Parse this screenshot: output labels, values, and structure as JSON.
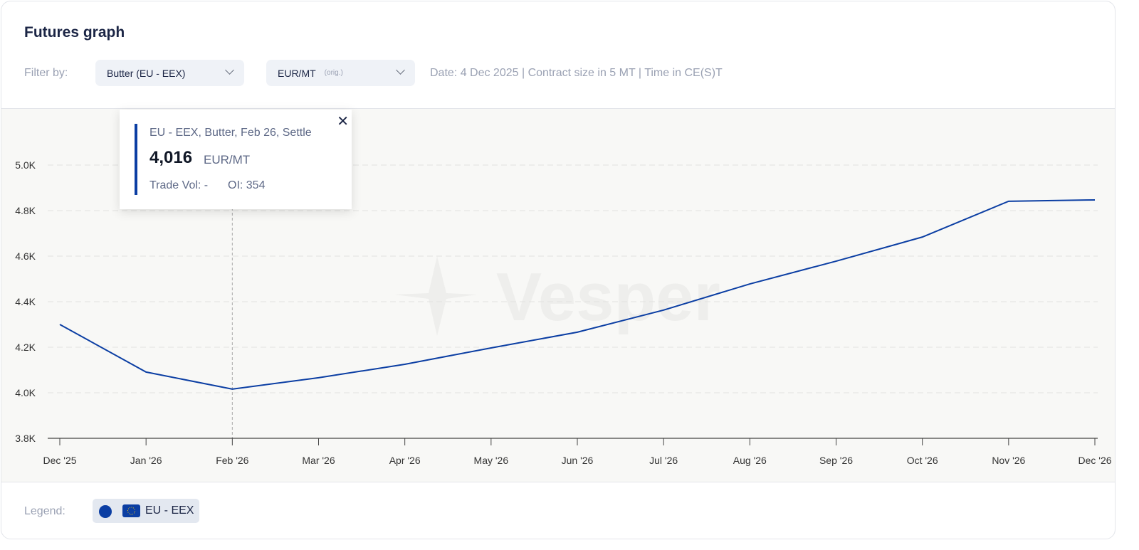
{
  "header": {
    "title": "Futures graph",
    "filter_label": "Filter by:",
    "product_select": "Butter (EU - EEX)",
    "unit_select": "EUR/MT",
    "unit_note": "(orig.)",
    "info": "Date: 4 Dec 2025 | Contract size in 5 MT | Time in CE(S)T"
  },
  "tooltip": {
    "title": "EU - EEX, Butter, Feb 26, Settle",
    "value": "4,016",
    "unit": "EUR/MT",
    "trade_vol": "Trade Vol: -",
    "oi": "OI: 354",
    "close_icon": "close-icon"
  },
  "watermark": "Vesper",
  "legend": {
    "label": "Legend:",
    "series": "EU - EEX",
    "color": "#0b3ea3",
    "flag_icon": "eu-flag-icon"
  },
  "chart_data": {
    "type": "line",
    "categories": [
      "Dec '25",
      "Jan '26",
      "Feb '26",
      "Mar '26",
      "Apr '26",
      "May '26",
      "Jun '26",
      "Jul '26",
      "Aug '26",
      "Sep '26",
      "Oct '26",
      "Nov '26",
      "Dec '26"
    ],
    "series": [
      {
        "name": "EU - EEX",
        "color": "#0b3ea3",
        "values": [
          4300,
          4091,
          4016,
          4066,
          4125,
          4197,
          4266,
          4363,
          4478,
          4578,
          4684,
          4841,
          4847
        ]
      }
    ],
    "yticks": [
      "3.8K",
      "4.0K",
      "4.2K",
      "4.4K",
      "4.6K",
      "4.8K",
      "5.0K"
    ],
    "ytick_values": [
      3800,
      4000,
      4200,
      4400,
      4600,
      4800,
      5000
    ],
    "ylim": [
      3800,
      5000
    ],
    "grid": true,
    "highlighted_category": "Feb '26"
  }
}
